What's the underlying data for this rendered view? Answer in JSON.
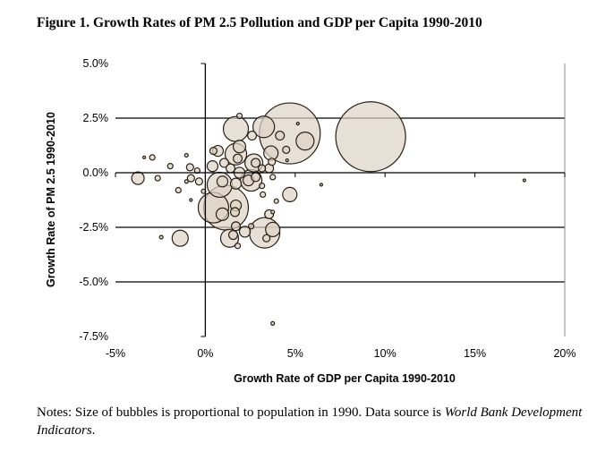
{
  "title": "Figure 1. Growth Rates of PM 2.5 Pollution and GDP per Capita 1990-2010",
  "notes": {
    "text": "Notes: Size of bubbles is proportional to population in 1990. Data source is ",
    "source": "World Bank Development Indicators",
    "end": "."
  },
  "chart_data": {
    "type": "bubble",
    "title": "Figure 1. Growth Rates of PM 2.5 Pollution and GDP per Capita 1990-2010",
    "xlabel": "Growth Rate of GDP per Capita 1990-2010",
    "ylabel": "Growth Rate of PM 2.5 1990-2010",
    "xlim": [
      -5,
      20
    ],
    "ylim": [
      -7.5,
      5
    ],
    "x_ticks": [
      "-5%",
      "0%",
      "5%",
      "10%",
      "15%",
      "20%"
    ],
    "y_ticks": [
      "5.0%",
      "2.5%",
      "0.0%",
      "-2.5%",
      "-5.0%",
      "-7.5%"
    ],
    "grid": "horizontal",
    "size_meaning": "relative population in 1990 (largest = 100)",
    "colors": {
      "fill": "#ddd3c4",
      "stroke": "#2a2016"
    },
    "points": [
      [
        9.2,
        1.65,
        100
      ],
      [
        4.7,
        1.8,
        76
      ],
      [
        1.15,
        -1.6,
        41
      ],
      [
        0.45,
        -1.6,
        19
      ],
      [
        3.3,
        -2.75,
        19
      ],
      [
        1.7,
        2.0,
        12.9
      ],
      [
        0.8,
        -0.55,
        12.9
      ],
      [
        3.25,
        2.1,
        9.5
      ],
      [
        1.7,
        0.85,
        9.5
      ],
      [
        2.55,
        -0.35,
        9.5
      ],
      [
        2.7,
        0.45,
        6.6
      ],
      [
        1.35,
        -3.0,
        6.6
      ],
      [
        5.55,
        1.45,
        6.6
      ],
      [
        -1.4,
        -3.0,
        5.3
      ],
      [
        4.7,
        -1.0,
        4.2
      ],
      [
        3.65,
        0.9,
        4.2
      ],
      [
        3.75,
        -2.6,
        4.2
      ],
      [
        -3.75,
        -0.25,
        3.2
      ],
      [
        1.9,
        1.2,
        3.2
      ],
      [
        0.95,
        -1.9,
        3.2
      ],
      [
        4.15,
        1.7,
        1.6
      ],
      [
        2.6,
        1.7,
        1.6
      ],
      [
        4.5,
        1.05,
        1.05
      ],
      [
        5.15,
        2.25,
        0.15
      ],
      [
        4.55,
        0.57,
        0.15
      ],
      [
        -2.95,
        0.7,
        0.6
      ],
      [
        -3.4,
        0.7,
        0.15
      ],
      [
        -1.95,
        0.3,
        0.6
      ],
      [
        -0.85,
        0.25,
        1.05
      ],
      [
        -0.45,
        0.1,
        0.6
      ],
      [
        -0.8,
        -0.25,
        1.05
      ],
      [
        -0.35,
        -0.4,
        1.05
      ],
      [
        -1.05,
        0.8,
        0.26
      ],
      [
        -2.65,
        -0.25,
        0.6
      ],
      [
        -1.5,
        -0.8,
        0.6
      ],
      [
        -1.05,
        -0.4,
        0.26
      ],
      [
        -0.8,
        -1.25,
        0.15
      ],
      [
        -0.1,
        -0.85,
        0.4
      ],
      [
        -2.45,
        -2.95,
        0.26
      ],
      [
        0.4,
        0.3,
        2.4
      ],
      [
        0.7,
        1.0,
        2.4
      ],
      [
        0.45,
        1.0,
        1.05
      ],
      [
        1.9,
        2.6,
        0.6
      ],
      [
        3.7,
        0.5,
        1.05
      ],
      [
        3.55,
        0.2,
        1.6
      ],
      [
        3.15,
        0.2,
        1.05
      ],
      [
        1.05,
        0.45,
        1.6
      ],
      [
        1.8,
        0.65,
        1.6
      ],
      [
        1.4,
        0.2,
        1.6
      ],
      [
        1.9,
        0.0,
        2.4
      ],
      [
        2.8,
        0.45,
        1.6
      ],
      [
        2.4,
        -0.35,
        2.4
      ],
      [
        2.8,
        -0.2,
        1.6
      ],
      [
        1.7,
        -0.5,
        2.4
      ],
      [
        0.95,
        -0.4,
        2.4
      ],
      [
        3.15,
        -0.6,
        0.6
      ],
      [
        3.2,
        -1.0,
        0.6
      ],
      [
        3.75,
        -0.2,
        0.6
      ],
      [
        3.95,
        -1.3,
        0.4
      ],
      [
        3.55,
        -1.9,
        1.6
      ],
      [
        3.75,
        -1.8,
        0.26
      ],
      [
        1.7,
        -1.5,
        2.4
      ],
      [
        1.65,
        -1.8,
        1.6
      ],
      [
        1.7,
        -2.45,
        1.6
      ],
      [
        2.2,
        -2.7,
        2.4
      ],
      [
        1.55,
        -2.85,
        1.6
      ],
      [
        1.8,
        -3.35,
        0.6
      ],
      [
        3.4,
        -3.0,
        1.05
      ],
      [
        2.55,
        -2.45,
        0.6
      ],
      [
        6.45,
        -0.55,
        0.15
      ],
      [
        17.75,
        -0.35,
        0.15
      ],
      [
        3.75,
        -6.9,
        0.26
      ]
    ]
  }
}
